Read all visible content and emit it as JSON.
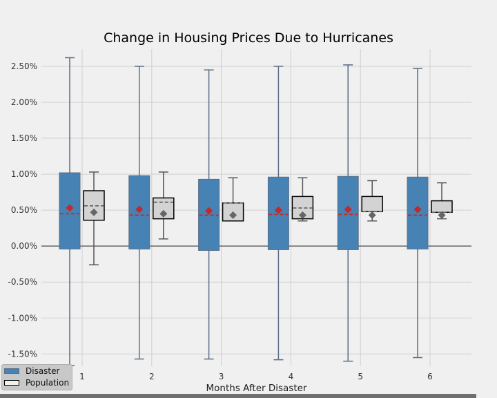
{
  "chart_data": {
    "type": "box",
    "title": "Change in Housing Prices Due to Hurricanes",
    "xlabel": "Months After Disaster",
    "ylabel": "",
    "categories": [
      "1",
      "2",
      "3",
      "4",
      "5",
      "6"
    ],
    "ylim": [
      -0.0167,
      0.0274
    ],
    "yticks": [
      -0.015,
      -0.01,
      -0.005,
      0,
      0.005,
      0.01,
      0.015,
      0.02,
      0.025
    ],
    "ytick_labels": [
      "-1.50%",
      "-1.00%",
      "-0.50%",
      "0.00%",
      "0.50%",
      "1.00%",
      "1.50%",
      "2.00%",
      "2.50%"
    ],
    "grid": true,
    "legend_position": "bottom-left",
    "series": [
      {
        "name": "Disaster",
        "color": "#4682b4",
        "mean_marker_color": "#c62828",
        "median_line_color": "#c62828",
        "whisker_low": [
          -0.0166,
          -0.0157,
          -0.0157,
          -0.0158,
          -0.016,
          -0.0155
        ],
        "q1": [
          -0.0004,
          -0.0004,
          -0.0006,
          -0.0005,
          -0.0005,
          -0.0004
        ],
        "median": [
          0.0045,
          0.0043,
          0.0043,
          0.0044,
          0.0044,
          0.0043
        ],
        "q3": [
          0.0102,
          0.0098,
          0.0093,
          0.0096,
          0.0097,
          0.0096
        ],
        "whisker_high": [
          0.0262,
          0.025,
          0.0245,
          0.025,
          0.0252,
          0.0247
        ],
        "mean": [
          0.0053,
          0.0051,
          0.0049,
          0.005,
          0.0051,
          0.0051
        ]
      },
      {
        "name": "Population",
        "color": "#d3d3d3",
        "mean_marker_color": "#666666",
        "median_line_color": "#666666",
        "whisker_low": [
          -0.0026,
          0.001,
          0.0035,
          0.0035,
          0.0035,
          0.0038
        ],
        "q1": [
          0.0036,
          0.0038,
          0.0035,
          0.0038,
          0.0048,
          0.0047
        ],
        "median": [
          0.0056,
          0.0061,
          0.006,
          0.0053,
          0.0048,
          0.0047
        ],
        "q3": [
          0.0077,
          0.0067,
          0.006,
          0.0069,
          0.0069,
          0.0063
        ],
        "whisker_high": [
          0.0103,
          0.0103,
          0.0095,
          0.0095,
          0.0091,
          0.0088
        ],
        "mean": [
          0.0047,
          0.0045,
          0.0043,
          0.0043,
          0.0043,
          0.0043
        ]
      }
    ]
  }
}
